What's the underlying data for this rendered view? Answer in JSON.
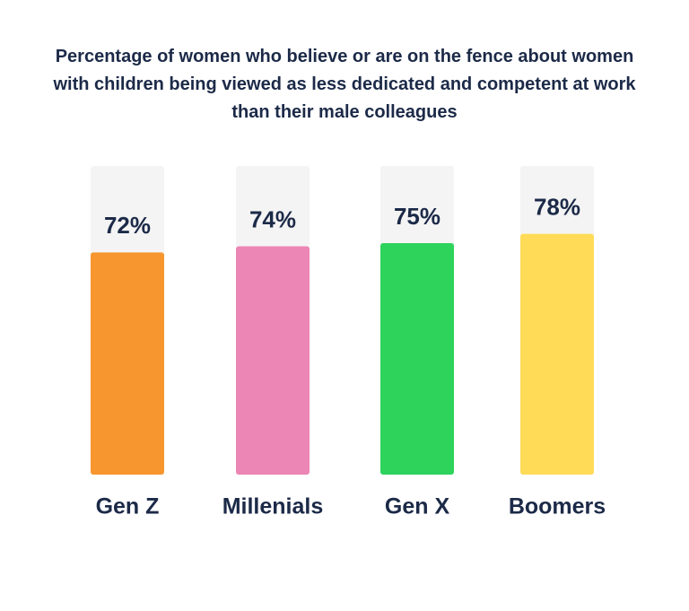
{
  "chart_data": {
    "type": "bar",
    "title": "Percentage of women who believe or are on the fence about women with children being viewed as less dedicated and competent at work than their male colleagues",
    "categories": [
      "Gen Z",
      "Millenials",
      "Gen X",
      "Boomers"
    ],
    "values": [
      72,
      74,
      75,
      78
    ],
    "value_labels": [
      "72%",
      "74%",
      "75%",
      "78%"
    ],
    "colors": [
      "#f7962f",
      "#ec86b4",
      "#2ed35c",
      "#ffdb58"
    ],
    "ylim": [
      0,
      100
    ]
  }
}
